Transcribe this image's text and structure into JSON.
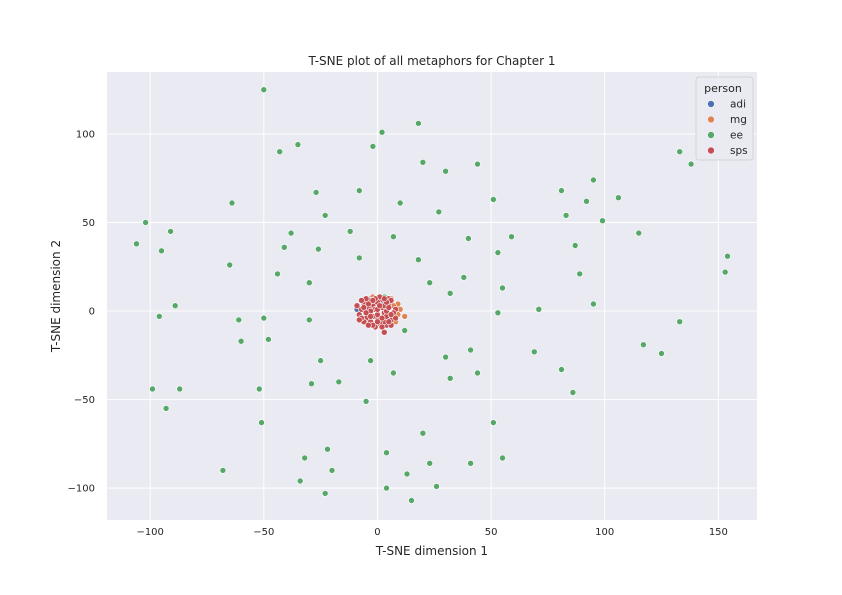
{
  "chart_data": {
    "type": "scatter",
    "title": "T-SNE plot of all metaphors for Chapter 1",
    "xlabel": "T-SNE dimension 1",
    "ylabel": "T-SNE dimension 2",
    "xlim": [
      -119,
      167
    ],
    "ylim": [
      -118,
      135
    ],
    "xticks": [
      -100,
      -50,
      0,
      50,
      100,
      150
    ],
    "yticks": [
      -100,
      -50,
      0,
      50,
      100
    ],
    "xtick_labels": [
      "−100",
      "−50",
      "0",
      "50",
      "100",
      "150"
    ],
    "ytick_labels": [
      "−100",
      "−50",
      "0",
      "50",
      "100"
    ],
    "grid": true,
    "legend": {
      "title": "person",
      "placement": "top-right"
    },
    "colors": {
      "background": "#eaeaf2",
      "grid": "#ffffff",
      "text": "#262626"
    },
    "series": [
      {
        "name": "adi",
        "color": "#4c72b0",
        "points": [
          [
            -6,
            4
          ],
          [
            -3,
            7
          ],
          [
            2,
            5
          ],
          [
            -9,
            1
          ],
          [
            -4,
            -2
          ],
          [
            5,
            6
          ]
        ]
      },
      {
        "name": "mg",
        "color": "#dd8452",
        "points": [
          [
            12,
            -3
          ],
          [
            9,
            4
          ],
          [
            8,
            -6
          ],
          [
            10,
            1
          ],
          [
            6,
            7
          ],
          [
            -2,
            8
          ],
          [
            9,
            -2
          ],
          [
            7,
            3
          ]
        ]
      },
      {
        "name": "ee",
        "color": "#55a868",
        "points": [
          [
            -50,
            125
          ],
          [
            -102,
            50
          ],
          [
            -106,
            38
          ],
          [
            -95,
            34
          ],
          [
            -91,
            45
          ],
          [
            -89,
            3
          ],
          [
            -96,
            -3
          ],
          [
            -99,
            -44
          ],
          [
            -93,
            -55
          ],
          [
            -87,
            -44
          ],
          [
            -64,
            61
          ],
          [
            -65,
            26
          ],
          [
            -61,
            -5
          ],
          [
            -60,
            -17
          ],
          [
            -52,
            -44
          ],
          [
            -51,
            -63
          ],
          [
            -50,
            -4
          ],
          [
            -48,
            -16
          ],
          [
            -43,
            90
          ],
          [
            -35,
            94
          ],
          [
            -41,
            36
          ],
          [
            -38,
            44
          ],
          [
            -44,
            21
          ],
          [
            -30,
            16
          ],
          [
            -30,
            -5
          ],
          [
            -29,
            -41
          ],
          [
            -27,
            67
          ],
          [
            -26,
            35
          ],
          [
            -23,
            54
          ],
          [
            -25,
            -28
          ],
          [
            -17,
            -40
          ],
          [
            -12,
            45
          ],
          [
            -8,
            68
          ],
          [
            -8,
            30
          ],
          [
            -2,
            93
          ],
          [
            2,
            101
          ],
          [
            7,
            42
          ],
          [
            10,
            61
          ],
          [
            18,
            106
          ],
          [
            20,
            84
          ],
          [
            18,
            29
          ],
          [
            23,
            16
          ],
          [
            27,
            56
          ],
          [
            30,
            79
          ],
          [
            32,
            10
          ],
          [
            38,
            19
          ],
          [
            40,
            41
          ],
          [
            44,
            83
          ],
          [
            51,
            63
          ],
          [
            53,
            33
          ],
          [
            55,
            13
          ],
          [
            59,
            42
          ],
          [
            53,
            -1
          ],
          [
            71,
            1
          ],
          [
            -68,
            -90
          ],
          [
            -34,
            -96
          ],
          [
            -32,
            -83
          ],
          [
            -22,
            -78
          ],
          [
            -20,
            -90
          ],
          [
            -23,
            -103
          ],
          [
            -3,
            -28
          ],
          [
            -5,
            -51
          ],
          [
            7,
            -35
          ],
          [
            4,
            -80
          ],
          [
            4,
            -100
          ],
          [
            13,
            -92
          ],
          [
            15,
            -107
          ],
          [
            20,
            -69
          ],
          [
            23,
            -86
          ],
          [
            26,
            -99
          ],
          [
            30,
            -26
          ],
          [
            32,
            -38
          ],
          [
            41,
            -22
          ],
          [
            41,
            -86
          ],
          [
            44,
            -35
          ],
          [
            51,
            -63
          ],
          [
            55,
            -83
          ],
          [
            69,
            -23
          ],
          [
            81,
            68
          ],
          [
            83,
            54
          ],
          [
            92,
            62
          ],
          [
            95,
            74
          ],
          [
            87,
            37
          ],
          [
            89,
            21
          ],
          [
            95,
            4
          ],
          [
            99,
            51
          ],
          [
            106,
            64
          ],
          [
            115,
            44
          ],
          [
            117,
            -19
          ],
          [
            125,
            -24
          ],
          [
            133,
            90
          ],
          [
            138,
            83
          ],
          [
            133,
            -6
          ],
          [
            154,
            31
          ],
          [
            153,
            22
          ],
          [
            81,
            -33
          ],
          [
            86,
            -46
          ],
          [
            12,
            -11
          ],
          [
            3,
            8
          ]
        ]
      },
      {
        "name": "sps",
        "color": "#c44e52",
        "points": [
          [
            -8,
            -2
          ],
          [
            -6,
            5
          ],
          [
            -4,
            -7
          ],
          [
            -2,
            3
          ],
          [
            0,
            -4
          ],
          [
            1,
            6
          ],
          [
            3,
            -1
          ],
          [
            4,
            -8
          ],
          [
            5,
            4
          ],
          [
            7,
            -3
          ],
          [
            -7,
            1
          ],
          [
            -5,
            -4
          ],
          [
            -3,
            6
          ],
          [
            -1,
            -9
          ],
          [
            2,
            2
          ],
          [
            3,
            -6
          ],
          [
            5,
            7
          ],
          [
            6,
            -5
          ],
          [
            8,
            1
          ],
          [
            -6,
            -6
          ],
          [
            -4,
            2
          ],
          [
            -2,
            -3
          ],
          [
            0,
            5
          ],
          [
            1,
            -7
          ],
          [
            3,
            3
          ],
          [
            4,
            -3
          ],
          [
            6,
            6
          ],
          [
            -9,
            3
          ],
          [
            -5,
            7
          ],
          [
            -3,
            -6
          ],
          [
            -1,
            1
          ],
          [
            0,
            -2
          ],
          [
            2,
            -9
          ],
          [
            4,
            0
          ],
          [
            6,
            -8
          ],
          [
            8,
            -4
          ],
          [
            -7,
            -4
          ],
          [
            -4,
            4
          ],
          [
            -2,
            -8
          ],
          [
            1,
            8
          ],
          [
            3,
            -12
          ],
          [
            -6,
            2
          ],
          [
            -3,
            0
          ],
          [
            0,
            1
          ],
          [
            2,
            -4
          ],
          [
            5,
            2
          ],
          [
            7,
            -1
          ],
          [
            -1,
            7
          ],
          [
            -8,
            -5
          ],
          [
            4,
            5
          ],
          [
            -5,
            -1
          ],
          [
            1,
            3
          ],
          [
            -2,
            6
          ],
          [
            6,
            -2
          ],
          [
            -4,
            -8
          ],
          [
            3,
            7
          ],
          [
            -7,
            6
          ],
          [
            0,
            -6
          ],
          [
            5,
            -6
          ],
          [
            -3,
            -3
          ]
        ]
      }
    ]
  }
}
